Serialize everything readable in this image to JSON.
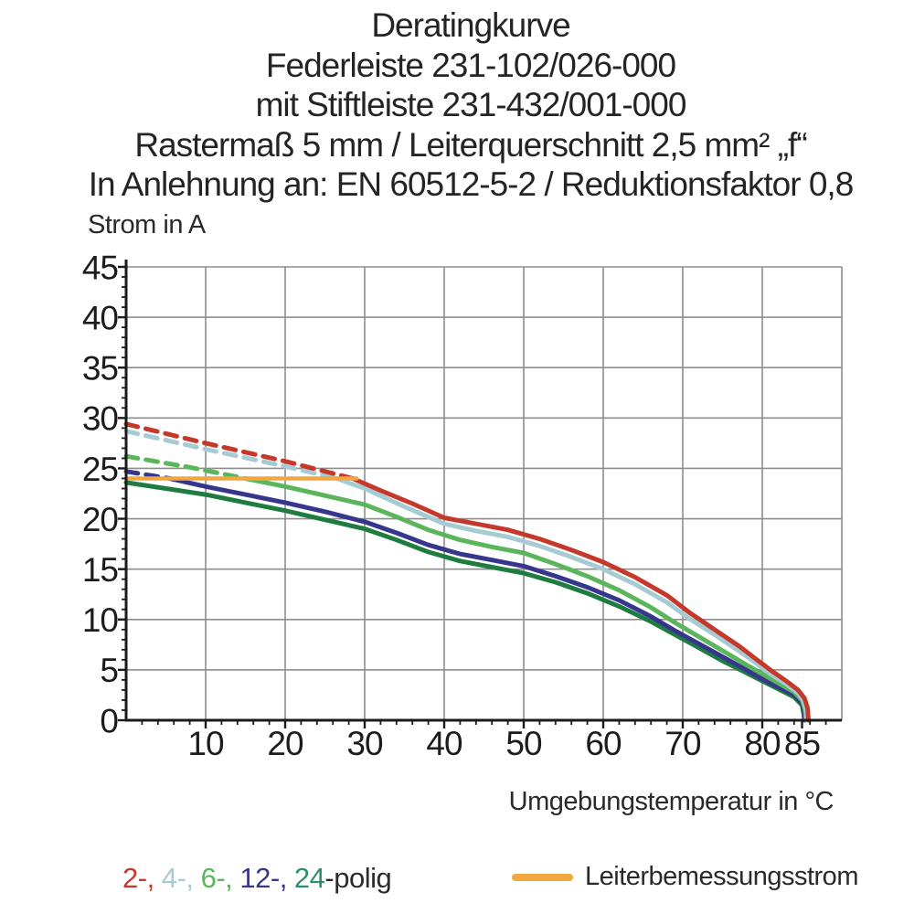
{
  "title": {
    "line1": "Deratingkurve",
    "line2": "Federleiste 231-102/026-000",
    "line3": "mit Stiftleiste 231-432/001-000",
    "line4": "Rastermaß 5 mm / Leiterquerschnitt 2,5 mm² „f“",
    "line5": "In Anlehnung an: EN 60512-5-2 / Reduktionsfaktor 0,8"
  },
  "chart_data": {
    "type": "line",
    "title": "Deratingkurve Federleiste 231-102/026-000 mit Stiftleiste 231-432/001-000",
    "xlabel": "Umgebungstemperatur in °C",
    "ylabel": "Strom in A",
    "xlim": [
      0,
      90
    ],
    "ylim": [
      0,
      45
    ],
    "grid": true,
    "x_ticks": [
      10,
      20,
      30,
      40,
      50,
      60,
      70,
      80,
      85
    ],
    "y_ticks": [
      0,
      5,
      10,
      15,
      20,
      25,
      30,
      35,
      40,
      45
    ],
    "x_gridlines": [
      10,
      20,
      30,
      40,
      50,
      60,
      70,
      80,
      90
    ],
    "y_gridlines": [
      5,
      10,
      15,
      20,
      25,
      30,
      35,
      40,
      45
    ],
    "x_minor_step": 2,
    "y_minor_step": 1,
    "colors": {
      "grid": "#8d8d8d",
      "axis": "#1b1b1b",
      "tick_text": "#1c1c1c"
    },
    "series": [
      {
        "name": "24-polig",
        "color": "#1e7c41",
        "width": 5,
        "segments": [
          {
            "style": "solid",
            "points": [
              [
                0,
                23.6
              ],
              [
                5,
                23.0
              ],
              [
                10,
                22.4
              ],
              [
                15,
                21.6
              ],
              [
                20,
                20.8
              ],
              [
                25,
                19.9
              ],
              [
                30,
                19.0
              ],
              [
                34,
                17.9
              ],
              [
                38,
                16.7
              ],
              [
                42,
                15.8
              ],
              [
                46,
                15.2
              ],
              [
                50,
                14.6
              ],
              [
                54,
                13.7
              ],
              [
                58,
                12.6
              ],
              [
                62,
                11.3
              ],
              [
                66,
                9.8
              ],
              [
                69,
                8.5
              ],
              [
                72,
                7.2
              ],
              [
                75,
                5.9
              ],
              [
                78,
                4.7
              ],
              [
                80,
                3.9
              ],
              [
                82,
                3.1
              ],
              [
                84,
                2.3
              ],
              [
                85,
                1.5
              ],
              [
                85.2,
                0.7
              ],
              [
                85.3,
                0
              ]
            ]
          }
        ]
      },
      {
        "name": "12-polig",
        "color": "#35368c",
        "width": 5,
        "segments": [
          {
            "style": "dashed",
            "points": [
              [
                0,
                24.7
              ],
              [
                5.5,
                24.0
              ]
            ]
          },
          {
            "style": "solid",
            "points": [
              [
                5.5,
                24.0
              ],
              [
                10,
                23.2
              ],
              [
                15,
                22.4
              ],
              [
                20,
                21.6
              ],
              [
                25,
                20.7
              ],
              [
                30,
                19.7
              ],
              [
                34,
                18.6
              ],
              [
                38,
                17.4
              ],
              [
                42,
                16.5
              ],
              [
                46,
                15.9
              ],
              [
                50,
                15.3
              ],
              [
                54,
                14.3
              ],
              [
                58,
                13.2
              ],
              [
                62,
                11.9
              ],
              [
                66,
                10.3
              ],
              [
                69,
                8.9
              ],
              [
                72,
                7.6
              ],
              [
                75,
                6.3
              ],
              [
                78,
                5.0
              ],
              [
                80,
                4.1
              ],
              [
                82,
                3.3
              ],
              [
                84,
                2.5
              ],
              [
                85,
                1.7
              ],
              [
                85.3,
                0.8
              ],
              [
                85.4,
                0
              ]
            ]
          }
        ]
      },
      {
        "name": "6-polig",
        "color": "#5bb55b",
        "width": 5,
        "segments": [
          {
            "style": "dashed",
            "points": [
              [
                0,
                26.2
              ],
              [
                8,
                25.1
              ],
              [
                15,
                24.0
              ]
            ]
          },
          {
            "style": "solid",
            "points": [
              [
                15,
                24.0
              ],
              [
                20,
                23.2
              ],
              [
                25,
                22.3
              ],
              [
                30,
                21.4
              ],
              [
                34,
                20.2
              ],
              [
                38,
                18.9
              ],
              [
                42,
                17.9
              ],
              [
                46,
                17.2
              ],
              [
                50,
                16.6
              ],
              [
                54,
                15.5
              ],
              [
                58,
                14.3
              ],
              [
                62,
                12.9
              ],
              [
                66,
                11.2
              ],
              [
                69,
                9.7
              ],
              [
                72,
                8.3
              ],
              [
                75,
                6.9
              ],
              [
                78,
                5.5
              ],
              [
                80,
                4.6
              ],
              [
                82,
                3.7
              ],
              [
                84,
                2.8
              ],
              [
                85,
                2.0
              ],
              [
                85.4,
                1.0
              ],
              [
                85.5,
                0
              ]
            ]
          }
        ]
      },
      {
        "name": "4-polig",
        "color": "#a6cbd3",
        "width": 5,
        "segments": [
          {
            "style": "dashed",
            "points": [
              [
                0,
                28.7
              ],
              [
                10,
                26.9
              ],
              [
                20,
                25.2
              ],
              [
                26.5,
                24.0
              ]
            ]
          },
          {
            "style": "solid",
            "points": [
              [
                26.5,
                24.0
              ],
              [
                30,
                23.0
              ],
              [
                35,
                21.2
              ],
              [
                40,
                19.5
              ],
              [
                44,
                18.8
              ],
              [
                48,
                18.2
              ],
              [
                52,
                17.3
              ],
              [
                56,
                16.2
              ],
              [
                60,
                15.0
              ],
              [
                64,
                13.5
              ],
              [
                68,
                11.7
              ],
              [
                71,
                10.0
              ],
              [
                74,
                8.5
              ],
              [
                77,
                6.9
              ],
              [
                79,
                5.8
              ],
              [
                81,
                4.6
              ],
              [
                83,
                3.6
              ],
              [
                84.5,
                2.7
              ],
              [
                85.2,
                1.9
              ],
              [
                85.5,
                1.0
              ],
              [
                85.6,
                0
              ]
            ]
          }
        ]
      },
      {
        "name": "2-polig",
        "color": "#c5392b",
        "width": 5,
        "segments": [
          {
            "style": "dashed",
            "points": [
              [
                0,
                29.4
              ],
              [
                10,
                27.5
              ],
              [
                20,
                25.7
              ],
              [
                28.5,
                24.0
              ]
            ]
          },
          {
            "style": "solid",
            "points": [
              [
                28.5,
                24.0
              ],
              [
                32,
                22.8
              ],
              [
                36,
                21.5
              ],
              [
                40,
                20.1
              ],
              [
                44,
                19.5
              ],
              [
                48,
                18.9
              ],
              [
                52,
                18.0
              ],
              [
                56,
                16.9
              ],
              [
                60,
                15.7
              ],
              [
                64,
                14.2
              ],
              [
                68,
                12.4
              ],
              [
                71,
                10.6
              ],
              [
                74,
                9.0
              ],
              [
                77,
                7.4
              ],
              [
                79,
                6.2
              ],
              [
                81,
                5.0
              ],
              [
                83,
                3.9
              ],
              [
                84.5,
                3.0
              ],
              [
                85.3,
                2.2
              ],
              [
                85.7,
                1.2
              ],
              [
                85.8,
                0
              ]
            ]
          }
        ]
      },
      {
        "name": "Leiterbemessungsstrom",
        "color": "#f0a73e",
        "width": 4.5,
        "segments": [
          {
            "style": "solid",
            "points": [
              [
                0,
                24.0
              ],
              [
                29,
                24.0
              ]
            ]
          }
        ]
      }
    ]
  },
  "legend": {
    "poles_tokens": [
      {
        "text": "2-, ",
        "color": "#c5392b"
      },
      {
        "text": "4-, ",
        "color": "#a6cbd3"
      },
      {
        "text": "6-, ",
        "color": "#5bb55b"
      },
      {
        "text": "12-, ",
        "color": "#35368c"
      },
      {
        "text": "24",
        "color": "#2f8e6c"
      },
      {
        "text": "-polig",
        "color": "#2b2b2b"
      }
    ],
    "rated_label": "Leiterbemessungsstrom",
    "rated_color": "#f0a73e"
  }
}
